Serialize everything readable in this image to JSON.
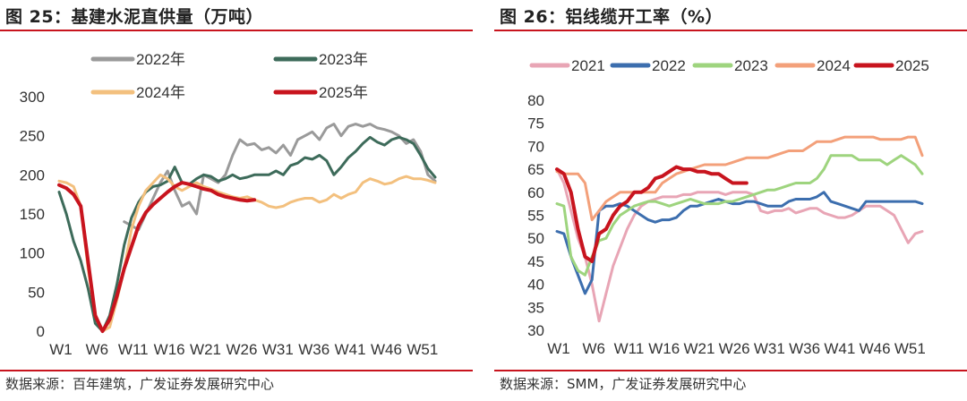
{
  "panels": [
    {
      "fig_title": "图 25：基建水泥直供量（万吨）",
      "source": "数据来源：百年建筑，广发证券发展研究中心"
    },
    {
      "fig_title": "图 26：铝线缆开工率（%）",
      "source": "数据来源：SMM，广发证券发展研究中心"
    }
  ],
  "chart_data": [
    {
      "type": "line",
      "title": "基建水泥直供量（万吨）",
      "xlabel": "",
      "ylabel": "",
      "x_range": [
        1,
        53
      ],
      "ylim": [
        0,
        300
      ],
      "yticks": [
        0,
        50,
        100,
        150,
        200,
        250,
        300
      ],
      "xtick_labels": [
        "W1",
        "W6",
        "W11",
        "W16",
        "W21",
        "W26",
        "W31",
        "W36",
        "W41",
        "W46",
        "W51"
      ],
      "grid": false,
      "legend": "top, two rows",
      "series": [
        {
          "name": "2022年",
          "color": "#9a9a9a",
          "x": [
            10,
            11,
            12,
            13,
            14,
            15,
            16,
            17,
            18,
            19,
            20,
            21,
            22,
            23,
            24,
            25,
            26,
            27,
            28,
            29,
            30,
            31,
            32,
            33,
            34,
            35,
            36,
            37,
            38,
            39,
            40,
            41,
            42,
            43,
            44,
            45,
            46,
            47,
            48,
            49,
            50,
            51,
            52,
            53
          ],
          "y": [
            140,
            135,
            130,
            150,
            170,
            190,
            205,
            180,
            160,
            165,
            150,
            200,
            195,
            190,
            200,
            225,
            245,
            238,
            240,
            232,
            235,
            228,
            238,
            225,
            245,
            250,
            255,
            245,
            260,
            265,
            250,
            262,
            265,
            262,
            265,
            260,
            258,
            255,
            250,
            240,
            245,
            230,
            200,
            192
          ]
        },
        {
          "name": "2023年",
          "color": "#3d6b5a",
          "x": [
            1,
            2,
            3,
            4,
            5,
            6,
            7,
            8,
            9,
            10,
            11,
            12,
            13,
            14,
            15,
            16,
            17,
            18,
            19,
            20,
            21,
            22,
            23,
            24,
            25,
            26,
            27,
            28,
            29,
            30,
            31,
            32,
            33,
            34,
            35,
            36,
            37,
            38,
            39,
            40,
            41,
            42,
            43,
            44,
            45,
            46,
            47,
            48,
            49,
            50,
            51,
            52,
            53
          ],
          "y": [
            178,
            150,
            115,
            90,
            55,
            10,
            0,
            20,
            60,
            110,
            145,
            165,
            178,
            185,
            187,
            192,
            210,
            190,
            188,
            195,
            200,
            198,
            192,
            195,
            200,
            195,
            197,
            200,
            200,
            200,
            205,
            200,
            212,
            215,
            222,
            220,
            225,
            218,
            200,
            210,
            222,
            230,
            240,
            248,
            242,
            238,
            245,
            248,
            245,
            240,
            225,
            208,
            197
          ]
        },
        {
          "name": "2024年",
          "color": "#f3c07e",
          "x": [
            1,
            2,
            3,
            4,
            5,
            6,
            7,
            8,
            9,
            10,
            11,
            12,
            13,
            14,
            15,
            16,
            17,
            18,
            19,
            20,
            21,
            22,
            23,
            24,
            25,
            26,
            27,
            28,
            29,
            30,
            31,
            32,
            33,
            34,
            35,
            36,
            37,
            38,
            39,
            40,
            41,
            42,
            43,
            44,
            45,
            46,
            47,
            48,
            49,
            50,
            51,
            52,
            53
          ],
          "y": [
            192,
            190,
            185,
            160,
            80,
            20,
            0,
            5,
            40,
            80,
            130,
            160,
            180,
            190,
            200,
            195,
            185,
            180,
            185,
            190,
            185,
            182,
            178,
            175,
            172,
            170,
            172,
            168,
            165,
            160,
            158,
            160,
            165,
            168,
            170,
            170,
            165,
            168,
            175,
            170,
            175,
            178,
            190,
            195,
            192,
            188,
            190,
            195,
            198,
            195,
            195,
            193,
            190
          ]
        },
        {
          "name": "2025年",
          "color": "#c8141e",
          "x": [
            1,
            2,
            3,
            4,
            5,
            6,
            7,
            8,
            9,
            10,
            11,
            12,
            13,
            14,
            15,
            16,
            17,
            18,
            19,
            20,
            21,
            22,
            23,
            24,
            25,
            26,
            27,
            28
          ],
          "y": [
            187,
            183,
            175,
            160,
            90,
            20,
            0,
            15,
            45,
            80,
            108,
            135,
            152,
            162,
            170,
            178,
            185,
            190,
            188,
            185,
            182,
            180,
            175,
            172,
            170,
            168,
            167,
            168
          ]
        }
      ]
    },
    {
      "type": "line",
      "title": "铝线缆开工率（%）",
      "xlabel": "",
      "ylabel": "",
      "x_range": [
        1,
        53
      ],
      "ylim": [
        30,
        80
      ],
      "yticks": [
        30,
        35,
        40,
        45,
        50,
        55,
        60,
        65,
        70,
        75,
        80
      ],
      "xtick_labels": [
        "W1",
        "W6",
        "W11",
        "W16",
        "W21",
        "W26",
        "W31",
        "W36",
        "W41",
        "W46",
        "W51"
      ],
      "grid": false,
      "legend": "top",
      "series": [
        {
          "name": "2021",
          "color": "#e8a5b5",
          "x": [
            1,
            2,
            3,
            4,
            5,
            6,
            7,
            8,
            9,
            10,
            11,
            12,
            13,
            14,
            15,
            16,
            17,
            18,
            19,
            20,
            21,
            22,
            23,
            24,
            25,
            26,
            27,
            28,
            29,
            30,
            31,
            32,
            33,
            34,
            35,
            36,
            37,
            38,
            39,
            40,
            41,
            42,
            43,
            44,
            45,
            46,
            47,
            48,
            49,
            50,
            51,
            52,
            53
          ],
          "y": [
            65,
            62,
            56,
            50,
            46,
            40,
            32,
            38,
            44,
            48,
            52,
            55,
            57,
            58,
            58.5,
            59,
            59,
            59,
            59.5,
            59.5,
            60,
            60,
            60,
            60,
            59.5,
            60,
            60,
            60,
            59.5,
            56,
            55.5,
            56,
            56,
            56.5,
            55.5,
            56,
            56.5,
            56.5,
            55.5,
            55,
            54.5,
            54.5,
            55,
            56,
            57,
            57,
            57,
            56,
            55,
            52,
            49,
            51,
            51.5
          ]
        },
        {
          "name": "2022",
          "color": "#3c6eae",
          "x": [
            1,
            2,
            3,
            4,
            5,
            6,
            7,
            8,
            9,
            10,
            11,
            12,
            13,
            14,
            15,
            16,
            17,
            18,
            19,
            20,
            21,
            22,
            23,
            24,
            25,
            26,
            27,
            28,
            29,
            30,
            31,
            32,
            33,
            34,
            35,
            36,
            37,
            38,
            39,
            40,
            41,
            42,
            43,
            44,
            45,
            46,
            47,
            48,
            49,
            50,
            51,
            52,
            53
          ],
          "y": [
            51.5,
            51,
            46,
            42,
            38,
            41,
            56,
            57,
            57,
            57.5,
            57,
            56,
            55,
            54,
            53.5,
            54,
            54,
            54.5,
            56,
            57,
            57,
            57.5,
            58,
            58.5,
            58,
            57.5,
            57.5,
            58,
            58,
            57.5,
            57,
            57,
            57,
            58,
            58.5,
            58.5,
            58.5,
            59,
            60,
            58,
            57.5,
            57,
            56.5,
            56,
            58,
            58,
            58,
            58,
            58,
            58,
            58,
            58,
            57.5
          ]
        },
        {
          "name": "2023",
          "color": "#9ed47e",
          "x": [
            1,
            2,
            3,
            4,
            5,
            6,
            7,
            8,
            9,
            10,
            11,
            12,
            13,
            14,
            15,
            16,
            17,
            18,
            19,
            20,
            21,
            22,
            23,
            24,
            25,
            26,
            27,
            28,
            29,
            30,
            31,
            32,
            33,
            34,
            35,
            36,
            37,
            38,
            39,
            40,
            41,
            42,
            43,
            44,
            45,
            46,
            47,
            48,
            49,
            50,
            51,
            52,
            53
          ],
          "y": [
            57.5,
            57,
            46,
            43,
            42,
            46,
            49.5,
            50,
            53,
            55,
            56,
            57,
            57.5,
            58,
            58,
            57.5,
            57,
            57.5,
            58,
            58.5,
            58,
            57.5,
            57.5,
            57.5,
            58,
            58,
            58.5,
            59,
            59.5,
            60,
            60.5,
            60.5,
            61,
            61.5,
            62,
            62,
            62,
            63,
            65,
            68,
            68,
            68,
            68,
            67,
            67,
            67,
            67,
            66,
            67,
            68,
            67,
            66,
            64
          ]
        },
        {
          "name": "2024",
          "color": "#f3a07a",
          "x": [
            1,
            2,
            3,
            4,
            5,
            6,
            7,
            8,
            9,
            10,
            11,
            12,
            13,
            14,
            15,
            16,
            17,
            18,
            19,
            20,
            21,
            22,
            23,
            24,
            25,
            26,
            27,
            28,
            29,
            30,
            31,
            32,
            33,
            34,
            35,
            36,
            37,
            38,
            39,
            40,
            41,
            42,
            43,
            44,
            45,
            46,
            47,
            48,
            49,
            50,
            51,
            52,
            53
          ],
          "y": [
            64.5,
            64,
            64,
            64,
            62,
            54,
            56,
            58,
            59,
            60,
            60,
            60,
            60,
            60,
            60,
            62,
            63,
            64,
            64.5,
            65,
            65.5,
            66,
            66,
            66,
            66,
            66.5,
            67,
            67.5,
            67.5,
            67.5,
            67.5,
            68,
            68.5,
            69,
            69,
            69,
            70,
            71,
            71,
            71,
            71.5,
            72,
            72,
            72,
            72,
            72,
            71.5,
            71.5,
            71.5,
            71.5,
            72,
            72,
            68
          ]
        },
        {
          "name": "2025",
          "color": "#c8141e",
          "x": [
            1,
            2,
            3,
            4,
            5,
            6,
            7,
            8,
            9,
            10,
            11,
            12,
            13,
            14,
            15,
            16,
            17,
            18,
            19,
            20,
            21,
            22,
            23,
            24,
            25,
            26,
            27,
            28
          ],
          "y": [
            65,
            64,
            60,
            52,
            46,
            45,
            51,
            52,
            55,
            57,
            58,
            60,
            60,
            61,
            63,
            63.5,
            64.5,
            65.5,
            65,
            65,
            64.5,
            64.5,
            64,
            64,
            63,
            62,
            62,
            62
          ]
        }
      ]
    }
  ]
}
